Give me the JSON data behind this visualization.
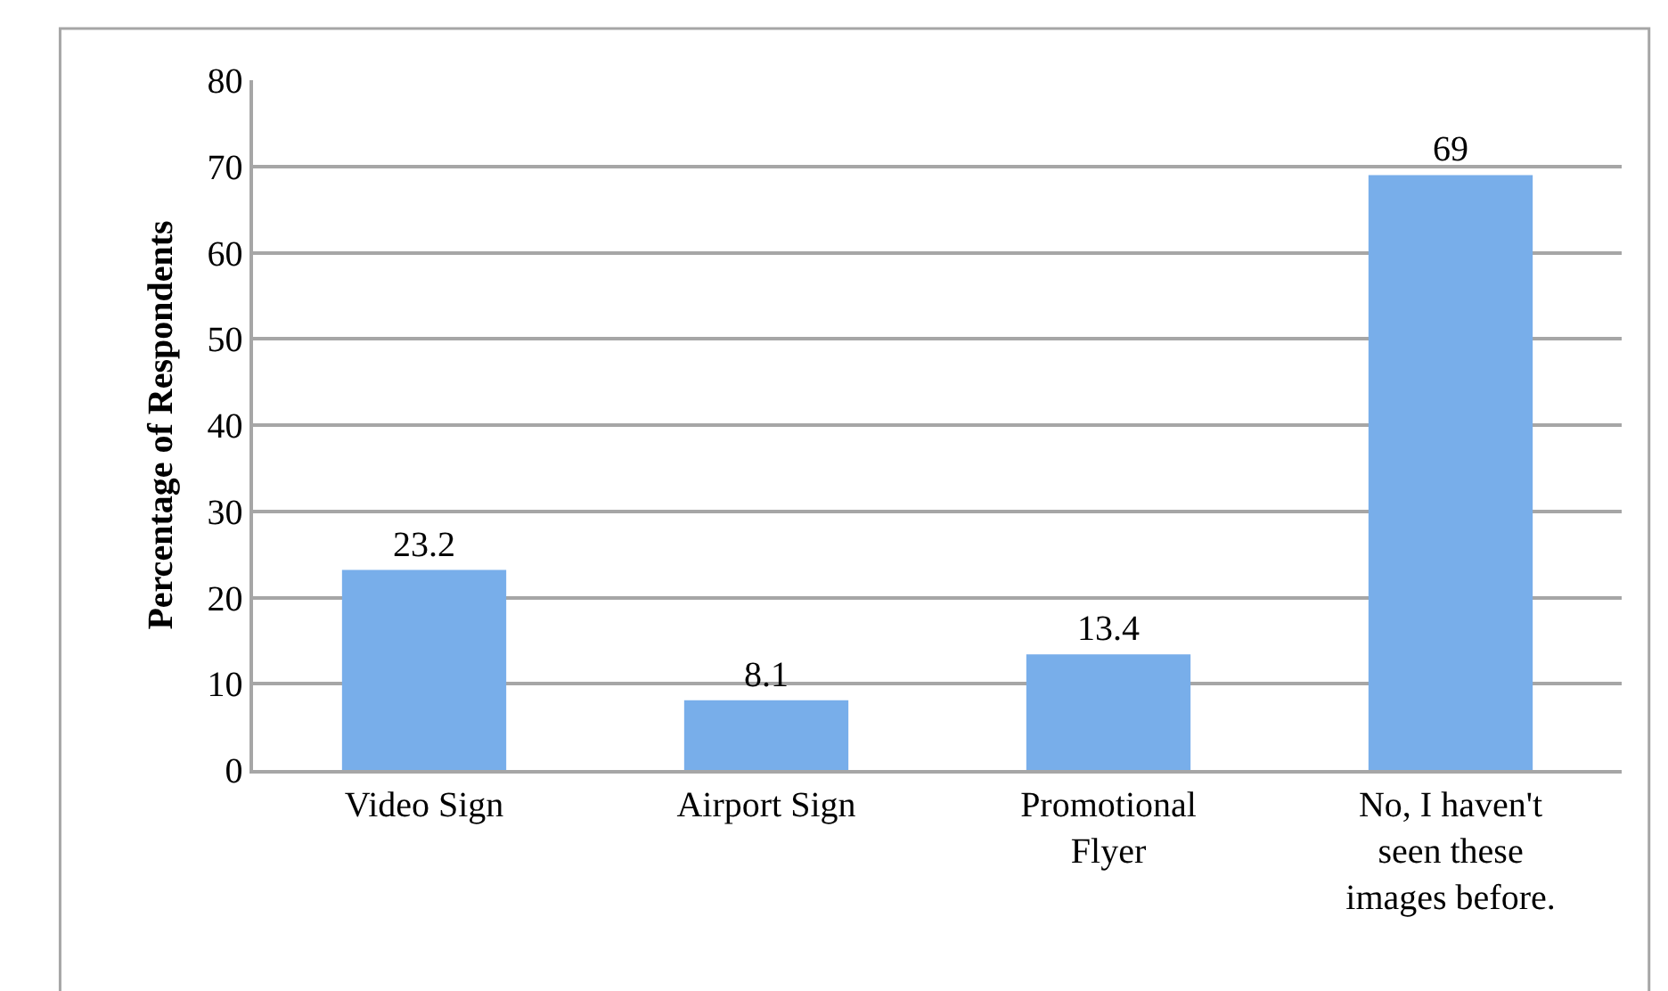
{
  "chart_data": {
    "type": "bar",
    "ylabel": "Percentage of Respondents",
    "categories": [
      "Video Sign",
      "Airport Sign",
      "Promotional Flyer",
      "No, I haven't seen these images before."
    ],
    "values": [
      23.2,
      8.1,
      13.4,
      69
    ],
    "color": "#78aeea",
    "ylim": [
      0,
      80
    ],
    "yticks": [
      0,
      10,
      20,
      30,
      40,
      50,
      60,
      70,
      80
    ],
    "grid": "y",
    "data_labels": true
  }
}
